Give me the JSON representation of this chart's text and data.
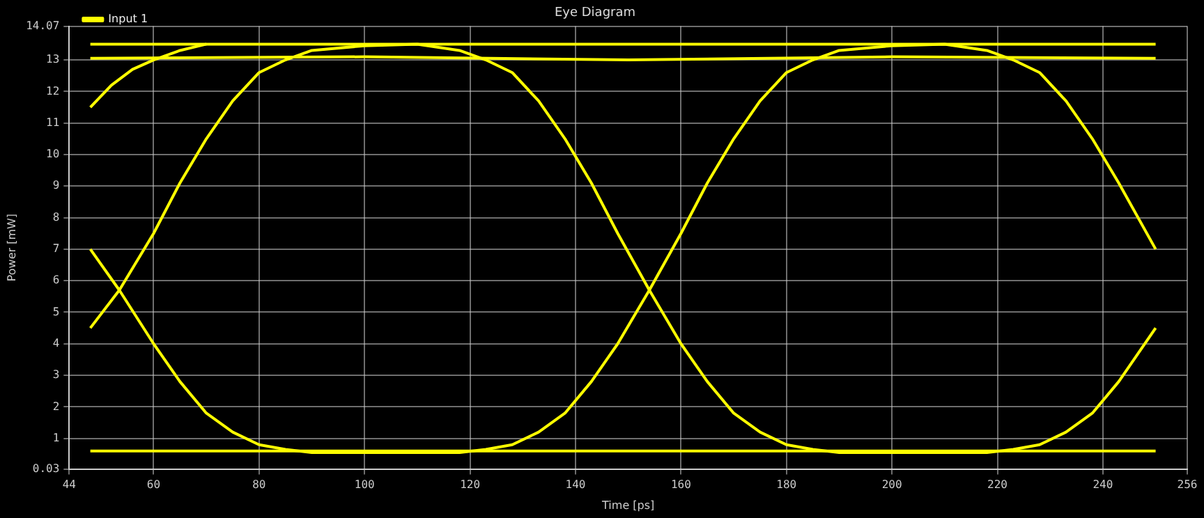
{
  "chart_data": {
    "type": "line",
    "title": "Eye Diagram",
    "xlabel": "Time [ps]",
    "ylabel": "Power [mW]",
    "xlim": [
      44,
      256
    ],
    "xticks": [
      44,
      60,
      80,
      100,
      120,
      140,
      160,
      180,
      200,
      220,
      240,
      256
    ],
    "ylim": [
      0.03,
      14.07
    ],
    "yticks": [
      0.03,
      1,
      2,
      3,
      4,
      5,
      6,
      7,
      8,
      9,
      10,
      11,
      12,
      13,
      14.07
    ],
    "grid": true,
    "legend": "top left",
    "marker": "none",
    "line_style": "solid",
    "series": [
      {
        "name": "Input 1",
        "color": "#ffff00",
        "x": [
          48,
          250
        ],
        "values": [
          13.5,
          13.5
        ]
      },
      {
        "color": "#ffff00",
        "x": [
          48,
          100,
          150,
          200,
          250
        ],
        "values": [
          13.05,
          13.1,
          13.0,
          13.1,
          13.05
        ]
      },
      {
        "color": "#ffff00",
        "x": [
          48,
          250
        ],
        "values": [
          0.6,
          0.6
        ]
      },
      {
        "color": "#ffff00",
        "x": [
          48,
          53.5,
          60,
          65,
          70,
          75,
          80,
          85,
          90,
          100,
          110,
          118,
          123,
          128,
          133,
          138,
          143,
          148,
          154,
          160,
          165,
          170,
          175,
          180,
          185,
          190,
          200,
          210,
          218,
          223,
          228,
          233,
          238,
          243,
          250
        ],
        "values": [
          4.5,
          5.7,
          7.5,
          9.1,
          10.5,
          11.7,
          12.6,
          13.0,
          13.3,
          13.45,
          13.5,
          13.3,
          13.0,
          12.6,
          11.7,
          10.5,
          9.1,
          7.5,
          5.7,
          4.0,
          2.8,
          1.8,
          1.2,
          0.8,
          0.65,
          0.55,
          0.55,
          0.55,
          0.55,
          0.65,
          0.8,
          1.2,
          1.8,
          2.8,
          4.5
        ]
      },
      {
        "color": "#ffff00",
        "x": [
          48,
          53.5,
          60,
          65,
          70,
          75,
          80,
          85,
          90,
          100,
          110,
          118,
          123,
          128,
          133,
          138,
          143,
          148,
          154,
          160,
          165,
          170,
          175,
          180,
          185,
          190,
          200,
          210,
          218,
          223,
          228,
          233,
          238,
          243,
          250
        ],
        "values": [
          7.0,
          5.7,
          4.0,
          2.8,
          1.8,
          1.2,
          0.8,
          0.65,
          0.55,
          0.55,
          0.55,
          0.55,
          0.65,
          0.8,
          1.2,
          1.8,
          2.8,
          4.0,
          5.7,
          7.5,
          9.1,
          10.5,
          11.7,
          12.6,
          13.0,
          13.3,
          13.45,
          13.5,
          13.3,
          13.0,
          12.6,
          11.7,
          10.5,
          9.1,
          7.0
        ]
      },
      {
        "color": "#ffff00",
        "x": [
          48,
          52,
          56,
          60,
          65,
          70
        ],
        "values": [
          11.5,
          12.2,
          12.7,
          13.0,
          13.3,
          13.5
        ]
      }
    ]
  }
}
